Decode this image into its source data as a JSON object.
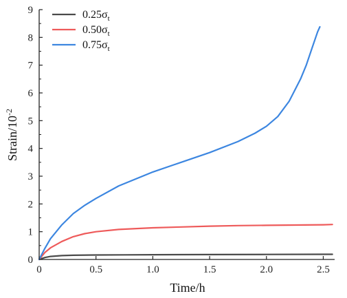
{
  "chart_data": {
    "type": "line",
    "title": "",
    "xlabel": "Time/h",
    "ylabel": "Strain/10",
    "ylabel_exponent": "-2",
    "xlim": [
      0,
      2.6
    ],
    "ylim": [
      0,
      9
    ],
    "x_ticks": [
      "0",
      "0.5",
      "1.0",
      "1.5",
      "2.0",
      "2.5"
    ],
    "y_ticks": [
      "0",
      "1",
      "2",
      "3",
      "4",
      "5",
      "6",
      "7",
      "8",
      "9"
    ],
    "grid": false,
    "legend_position": "top-left",
    "series": [
      {
        "name": "0.25σ",
        "name_subscript": "t",
        "color": "#4a4a4a",
        "x": [
          0,
          0.05,
          0.1,
          0.2,
          0.3,
          0.5,
          0.75,
          1.0,
          1.5,
          2.0,
          2.5,
          2.58
        ],
        "y": [
          0,
          0.07,
          0.11,
          0.14,
          0.15,
          0.16,
          0.165,
          0.17,
          0.175,
          0.18,
          0.185,
          0.185
        ]
      },
      {
        "name": "0.50σ",
        "name_subscript": "t",
        "color": "#ee5a5a",
        "x": [
          0,
          0.05,
          0.1,
          0.2,
          0.3,
          0.4,
          0.5,
          0.7,
          1.0,
          1.25,
          1.5,
          1.75,
          2.0,
          2.25,
          2.5,
          2.58
        ],
        "y": [
          0,
          0.25,
          0.42,
          0.65,
          0.82,
          0.93,
          1.0,
          1.08,
          1.14,
          1.17,
          1.2,
          1.22,
          1.23,
          1.24,
          1.25,
          1.26
        ]
      },
      {
        "name": "0.75σ",
        "name_subscript": "t",
        "color": "#3c86e0",
        "x": [
          0,
          0.05,
          0.1,
          0.2,
          0.3,
          0.4,
          0.5,
          0.7,
          1.0,
          1.25,
          1.5,
          1.75,
          1.9,
          2.0,
          2.1,
          2.2,
          2.3,
          2.35,
          2.4,
          2.45,
          2.47
        ],
        "y": [
          0,
          0.4,
          0.75,
          1.25,
          1.65,
          1.95,
          2.2,
          2.65,
          3.15,
          3.5,
          3.85,
          4.25,
          4.55,
          4.8,
          5.15,
          5.7,
          6.5,
          7.0,
          7.6,
          8.2,
          8.38
        ]
      }
    ]
  }
}
